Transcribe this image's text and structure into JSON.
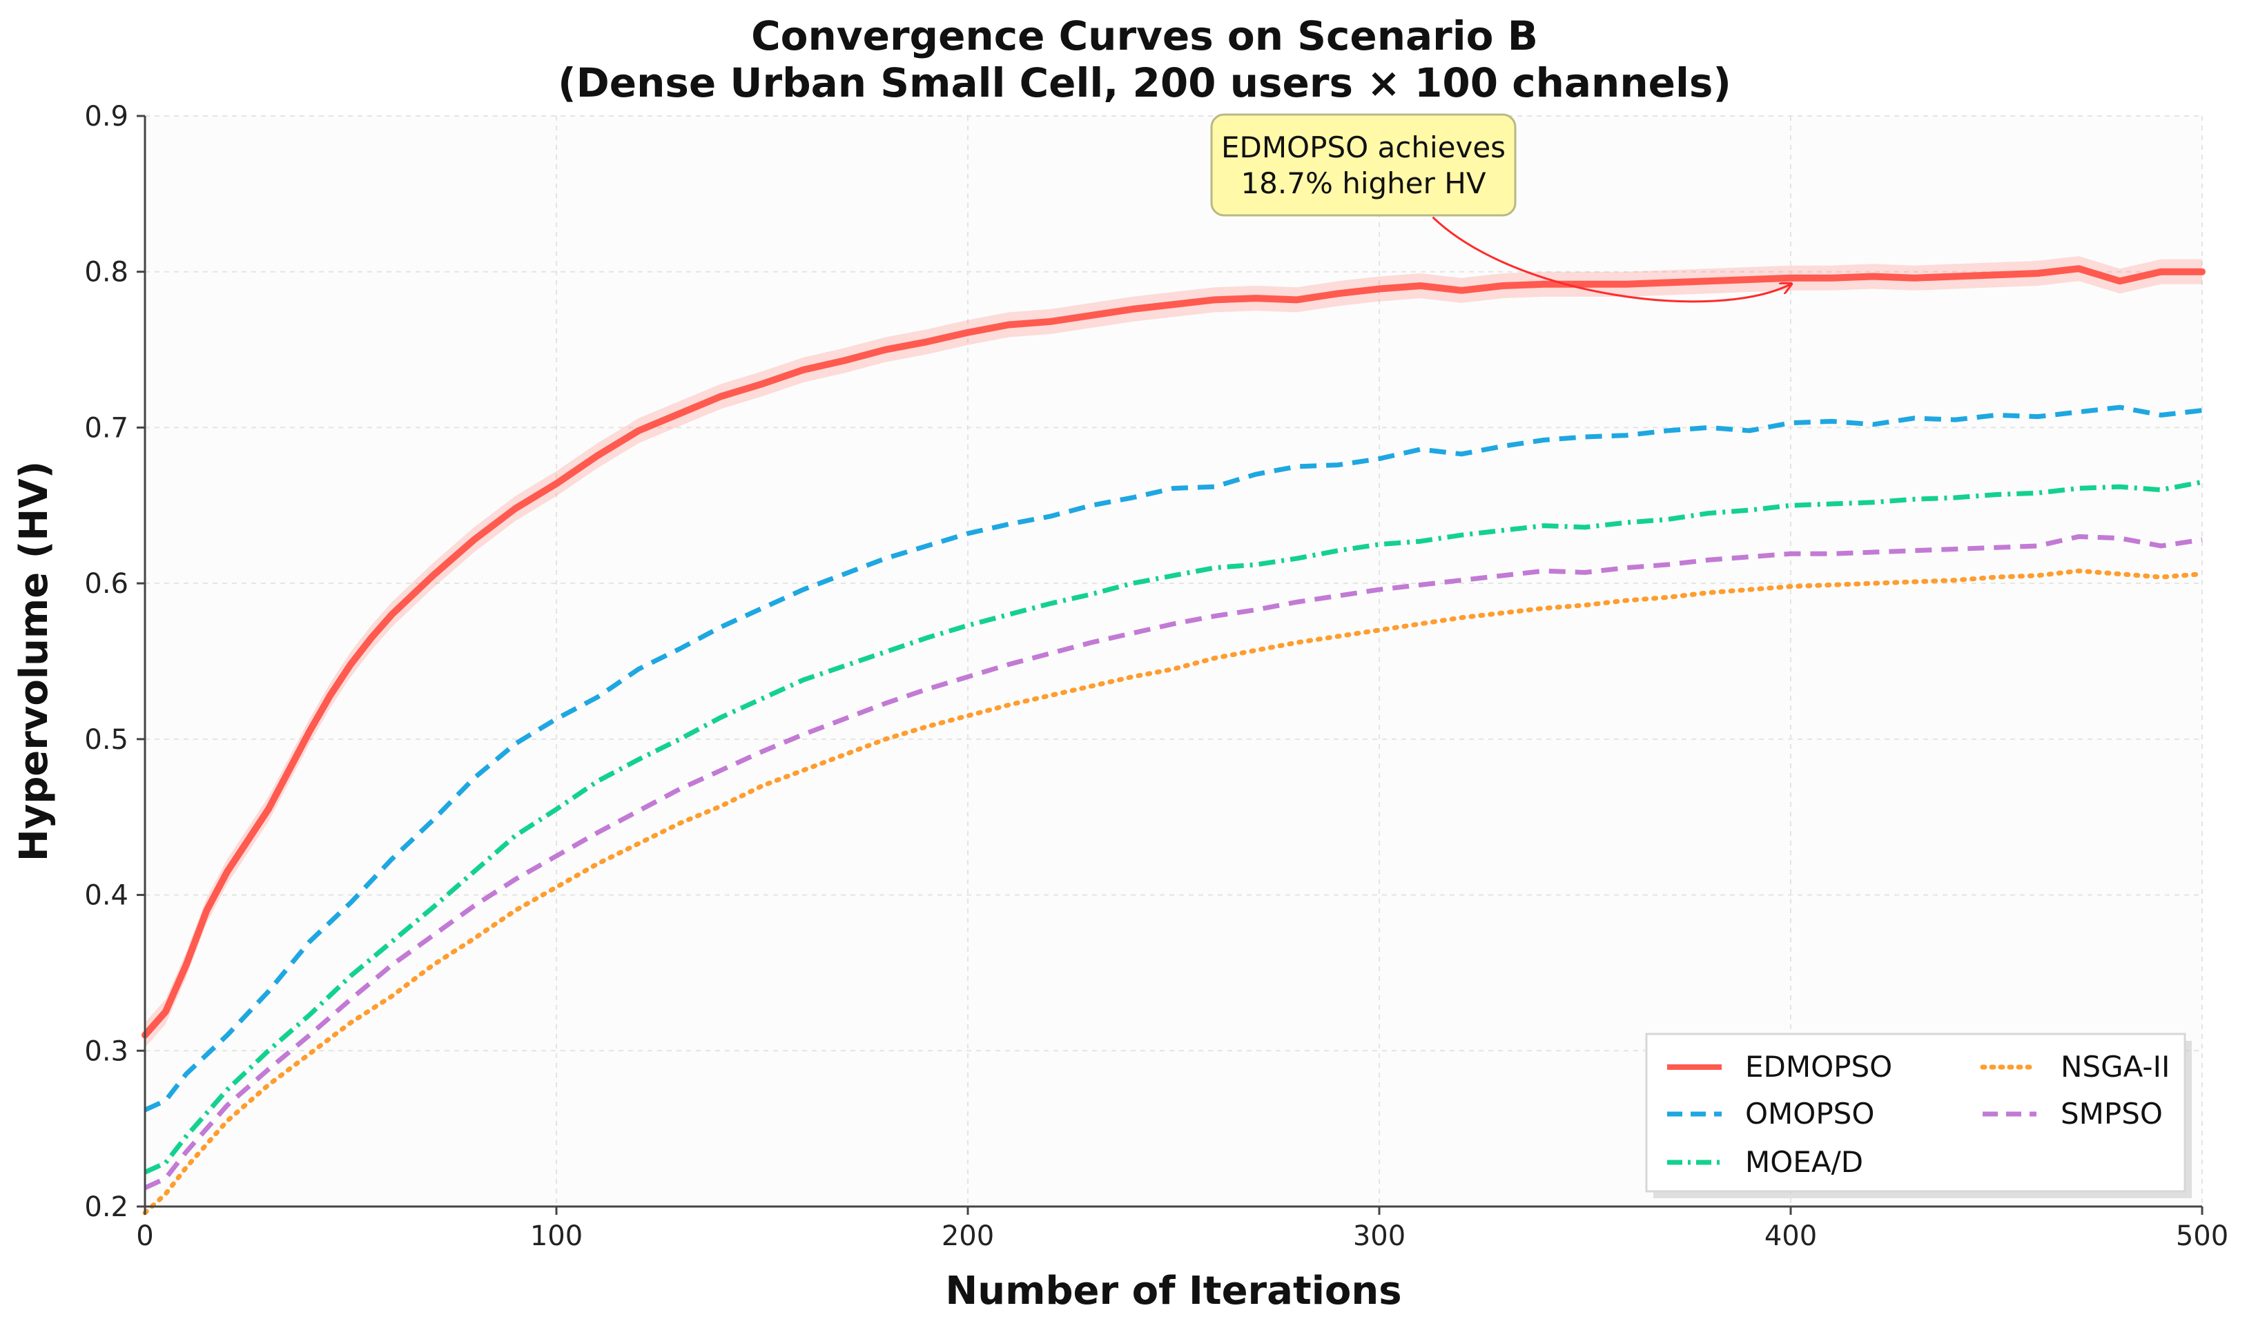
{
  "chart_data": {
    "type": "line",
    "title_lines": [
      "Convergence Curves on Scenario B",
      "(Dense Urban Small Cell, 200 users × 100 channels)"
    ],
    "xlabel": "Number of Iterations",
    "ylabel": "Hypervolume (HV)",
    "xlim": [
      0,
      500
    ],
    "ylim": [
      0.2,
      0.9
    ],
    "xticks": [
      0,
      100,
      200,
      300,
      400,
      500
    ],
    "yticks": [
      0.2,
      0.3,
      0.4,
      0.5,
      0.6,
      0.7,
      0.8,
      0.9
    ],
    "xtick_labels": [
      "0",
      "100",
      "200",
      "300",
      "400",
      "500"
    ],
    "ytick_labels": [
      "0.2",
      "0.3",
      "0.4",
      "0.5",
      "0.6",
      "0.7",
      "0.8",
      "0.9"
    ],
    "grid": true,
    "legend_position": "lower-right",
    "legend_columns": 2,
    "series": [
      {
        "name": "EDMOPSO",
        "color": "#ff5a4f",
        "style": "solid",
        "band": 0.008,
        "x": [
          0,
          5,
          10,
          15,
          20,
          25,
          30,
          35,
          40,
          45,
          50,
          55,
          60,
          70,
          80,
          90,
          100,
          110,
          120,
          130,
          140,
          150,
          160,
          170,
          180,
          190,
          200,
          210,
          220,
          230,
          240,
          250,
          260,
          270,
          280,
          290,
          300,
          310,
          320,
          330,
          340,
          350,
          360,
          370,
          380,
          390,
          400,
          410,
          420,
          430,
          440,
          450,
          460,
          470,
          475,
          480,
          490,
          500
        ],
        "y": [
          0.31,
          0.325,
          0.355,
          0.39,
          0.415,
          0.435,
          0.455,
          0.48,
          0.505,
          0.528,
          0.548,
          0.565,
          0.58,
          0.605,
          0.628,
          0.648,
          0.664,
          0.682,
          0.698,
          0.709,
          0.72,
          0.728,
          0.737,
          0.743,
          0.75,
          0.755,
          0.761,
          0.766,
          0.768,
          0.772,
          0.776,
          0.779,
          0.782,
          0.783,
          0.782,
          0.786,
          0.789,
          0.791,
          0.788,
          0.791,
          0.792,
          0.792,
          0.792,
          0.793,
          0.794,
          0.795,
          0.796,
          0.796,
          0.797,
          0.796,
          0.797,
          0.798,
          0.799,
          0.802,
          0.798,
          0.794,
          0.8,
          0.8
        ]
      },
      {
        "name": "OMOPSO",
        "color": "#1ea7e1",
        "style": "dashed",
        "x": [
          0,
          5,
          10,
          20,
          30,
          40,
          50,
          60,
          70,
          80,
          90,
          100,
          110,
          120,
          130,
          140,
          150,
          160,
          170,
          180,
          190,
          200,
          210,
          220,
          230,
          240,
          250,
          260,
          270,
          280,
          290,
          300,
          310,
          320,
          330,
          340,
          350,
          360,
          370,
          380,
          390,
          400,
          410,
          420,
          430,
          440,
          450,
          460,
          470,
          480,
          490,
          500
        ],
        "y": [
          0.262,
          0.268,
          0.285,
          0.31,
          0.338,
          0.37,
          0.395,
          0.423,
          0.448,
          0.475,
          0.497,
          0.513,
          0.527,
          0.545,
          0.558,
          0.572,
          0.584,
          0.596,
          0.606,
          0.616,
          0.624,
          0.632,
          0.638,
          0.643,
          0.65,
          0.655,
          0.661,
          0.662,
          0.67,
          0.675,
          0.676,
          0.68,
          0.686,
          0.683,
          0.688,
          0.692,
          0.694,
          0.695,
          0.698,
          0.7,
          0.698,
          0.703,
          0.704,
          0.702,
          0.706,
          0.705,
          0.708,
          0.707,
          0.71,
          0.713,
          0.708,
          0.711
        ]
      },
      {
        "name": "MOEA/D",
        "color": "#13d18e",
        "style": "dashdot",
        "x": [
          0,
          5,
          10,
          20,
          30,
          40,
          50,
          60,
          70,
          80,
          90,
          100,
          110,
          120,
          130,
          140,
          150,
          160,
          170,
          180,
          190,
          200,
          210,
          220,
          230,
          240,
          250,
          260,
          270,
          280,
          290,
          300,
          310,
          320,
          330,
          340,
          350,
          360,
          370,
          380,
          390,
          400,
          410,
          420,
          430,
          440,
          450,
          460,
          470,
          480,
          490,
          500
        ],
        "y": [
          0.222,
          0.228,
          0.245,
          0.275,
          0.3,
          0.323,
          0.348,
          0.37,
          0.392,
          0.415,
          0.438,
          0.455,
          0.473,
          0.487,
          0.5,
          0.514,
          0.526,
          0.538,
          0.547,
          0.556,
          0.565,
          0.573,
          0.58,
          0.587,
          0.593,
          0.6,
          0.605,
          0.61,
          0.612,
          0.616,
          0.621,
          0.625,
          0.627,
          0.631,
          0.634,
          0.637,
          0.636,
          0.639,
          0.641,
          0.645,
          0.647,
          0.65,
          0.651,
          0.652,
          0.654,
          0.655,
          0.657,
          0.658,
          0.661,
          0.662,
          0.66,
          0.665
        ]
      },
      {
        "name": "NSGA-II",
        "color": "#ff9d2e",
        "style": "dotted",
        "x": [
          0,
          5,
          10,
          20,
          30,
          40,
          50,
          60,
          70,
          80,
          90,
          100,
          110,
          120,
          130,
          140,
          150,
          160,
          170,
          180,
          190,
          200,
          210,
          220,
          230,
          240,
          250,
          260,
          270,
          280,
          290,
          300,
          310,
          320,
          330,
          340,
          350,
          360,
          370,
          380,
          390,
          400,
          410,
          420,
          430,
          440,
          450,
          460,
          470,
          480,
          490,
          500
        ],
        "y": [
          0.196,
          0.208,
          0.225,
          0.255,
          0.278,
          0.298,
          0.318,
          0.335,
          0.355,
          0.372,
          0.39,
          0.405,
          0.42,
          0.433,
          0.446,
          0.457,
          0.47,
          0.48,
          0.49,
          0.5,
          0.508,
          0.515,
          0.522,
          0.528,
          0.534,
          0.54,
          0.545,
          0.552,
          0.557,
          0.562,
          0.566,
          0.57,
          0.574,
          0.578,
          0.581,
          0.584,
          0.586,
          0.589,
          0.591,
          0.594,
          0.596,
          0.598,
          0.599,
          0.6,
          0.601,
          0.602,
          0.604,
          0.605,
          0.608,
          0.606,
          0.604,
          0.606
        ]
      },
      {
        "name": "SMPSO",
        "color": "#c27ad4",
        "style": "dashed",
        "x": [
          0,
          5,
          10,
          20,
          30,
          40,
          50,
          60,
          70,
          80,
          90,
          100,
          110,
          120,
          130,
          140,
          150,
          160,
          170,
          180,
          190,
          200,
          210,
          220,
          230,
          240,
          250,
          260,
          270,
          280,
          290,
          300,
          310,
          320,
          330,
          340,
          350,
          360,
          370,
          380,
          390,
          400,
          410,
          420,
          430,
          440,
          450,
          460,
          470,
          480,
          490,
          500
        ],
        "y": [
          0.212,
          0.218,
          0.235,
          0.265,
          0.288,
          0.31,
          0.333,
          0.355,
          0.374,
          0.393,
          0.41,
          0.425,
          0.44,
          0.454,
          0.468,
          0.48,
          0.492,
          0.503,
          0.513,
          0.523,
          0.532,
          0.54,
          0.548,
          0.555,
          0.562,
          0.568,
          0.574,
          0.579,
          0.583,
          0.588,
          0.592,
          0.596,
          0.599,
          0.602,
          0.605,
          0.608,
          0.607,
          0.61,
          0.612,
          0.615,
          0.617,
          0.619,
          0.619,
          0.62,
          0.621,
          0.622,
          0.623,
          0.624,
          0.63,
          0.629,
          0.624,
          0.628
        ]
      }
    ],
    "annotation": {
      "lines": [
        "EDMOPSO achieves",
        "18.7% higher HV"
      ],
      "box_color": "#fff9a8",
      "border_color": "#b8b884",
      "arrow_color": "#ff2a2a",
      "arrow_target": [
        400,
        0.792
      ],
      "arrow_source": [
        313,
        0.835
      ]
    }
  }
}
